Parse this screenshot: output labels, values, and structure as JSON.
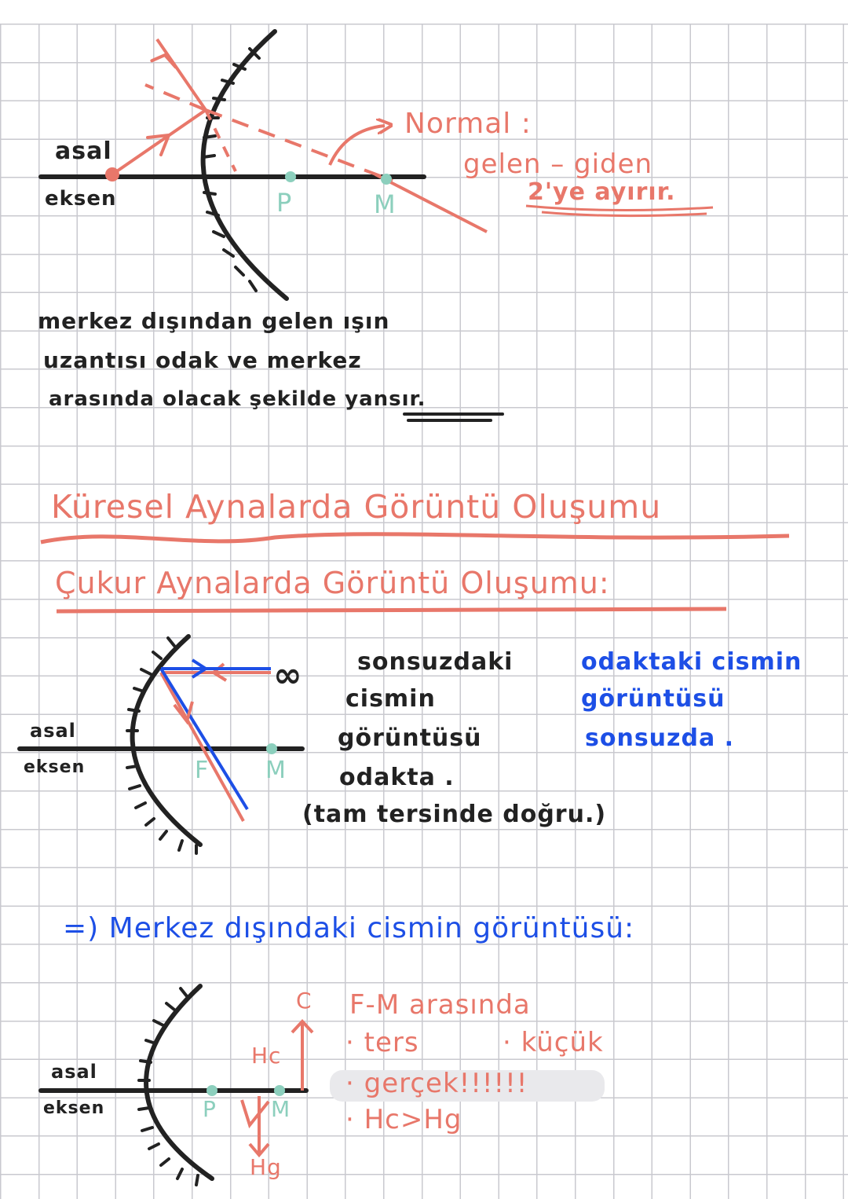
{
  "colors": {
    "ink": "#222222",
    "salmon": "#e8776a",
    "blue": "#1d4fe6",
    "teal": "#8ccfbd",
    "highlight": "#e9e9ec"
  },
  "diagram1": {
    "axis_label_top": "asal",
    "axis_label_bottom": "eksen",
    "point_p": "P",
    "point_m": "M",
    "note_title": "Normal :",
    "note_line1": "gelen – giden",
    "note_line2": "2'ye ayırır."
  },
  "paragraph": {
    "line1": "merkez dışından gelen ışın",
    "line2": "uzantısı odak ve merkez",
    "line3": "arasında olacak şekilde yansır."
  },
  "headings": {
    "main": "Küresel Aynalarda Görüntü Oluşumu",
    "sub": "Çukur Aynalarda Görüntü Oluşumu:"
  },
  "diagram2": {
    "axis_label_top": "asal",
    "axis_label_bottom": "eksen",
    "point_f": "F",
    "point_m": "M",
    "infinity": "∞",
    "black_note": [
      "sonsuzdaki",
      "cismin",
      "görüntüsü",
      "odakta .",
      "(tam tersinde doğru.)"
    ],
    "blue_note": [
      "odaktaki cismin",
      "görüntüsü",
      "sonsuzda ."
    ]
  },
  "section3": {
    "heading": "=) Merkez dışındaki cismin görüntüsü:"
  },
  "diagram3": {
    "axis_label_top": "asal",
    "axis_label_bottom": "eksen",
    "point_p": "P",
    "point_m": "M",
    "object_label": "C",
    "object_height": "Hc",
    "image_height": "Hg",
    "notes": [
      "F-M arasında",
      "· ters",
      "· küçük",
      "· gerçek!!!!!!",
      "· Hc>Hg"
    ]
  }
}
